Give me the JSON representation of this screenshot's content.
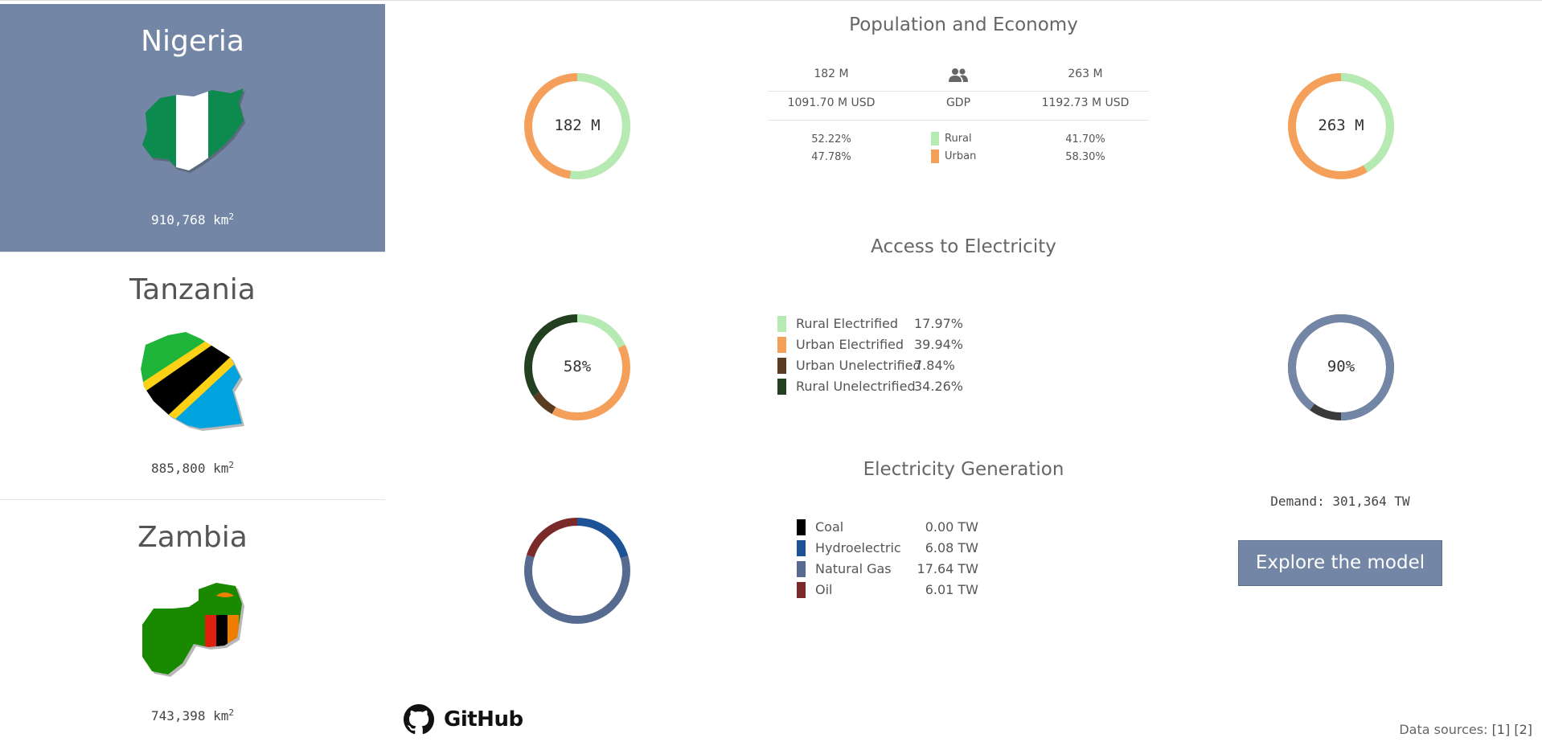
{
  "sidebar": {
    "countries": [
      {
        "name": "Nigeria",
        "area": "910,768 km",
        "area_unit_sup": "2"
      },
      {
        "name": "Tanzania",
        "area": "885,800 km",
        "area_unit_sup": "2"
      },
      {
        "name": "Zambia",
        "area": "743,398 km",
        "area_unit_sup": "2"
      }
    ]
  },
  "population": {
    "title": "Population and Economy",
    "left_donut_label": "182 M",
    "right_donut_label": "263 M",
    "rows": [
      {
        "left": "182 M",
        "center_icon": "people-icon",
        "right": "263 M"
      },
      {
        "left": "1091.70 M USD",
        "center": "GDP",
        "right": "1192.73 M USD"
      }
    ],
    "rural": {
      "label": "Rural",
      "left": "52.22%",
      "right": "41.70%",
      "color": "#b5eab3"
    },
    "urban": {
      "label": "Urban",
      "left": "47.78%",
      "right": "58.30%",
      "color": "#f5a05a"
    }
  },
  "electricity_access": {
    "title": "Access to Electricity",
    "left_donut_label": "58%",
    "right_donut_label": "90%",
    "right_donut_value": 0.9,
    "legend": [
      {
        "label": "Rural Electrified",
        "value": "17.97%",
        "color": "#b5eab3",
        "fraction": 0.1797
      },
      {
        "label": "Urban Electrified",
        "value": "39.94%",
        "color": "#f5a05a",
        "fraction": 0.3994
      },
      {
        "label": "Urban Unelectrified",
        "value": "7.84%",
        "color": "#5a3c23",
        "fraction": 0.0784
      },
      {
        "label": "Rural Unelectrified",
        "value": "34.26%",
        "color": "#234020",
        "fraction": 0.3426
      }
    ]
  },
  "generation": {
    "title": "Electricity Generation",
    "legend": [
      {
        "label": "Coal",
        "value": "0.00 TW",
        "color": "#000000",
        "amount": 0.0
      },
      {
        "label": "Hydroelectric",
        "value": "6.08 TW",
        "color": "#1d5296",
        "amount": 6.08
      },
      {
        "label": "Natural Gas",
        "value": "17.64 TW",
        "color": "#566b8f",
        "amount": 17.64
      },
      {
        "label": "Oil",
        "value": "6.01 TW",
        "color": "#7b2a2a",
        "amount": 6.01
      }
    ],
    "demand": "Demand: 301,364 TW",
    "button": "Explore the model"
  },
  "footer": {
    "github": "GitHub",
    "sources_label": "Data sources: ",
    "source_1": "[1]",
    "source_2": "[2]"
  }
}
